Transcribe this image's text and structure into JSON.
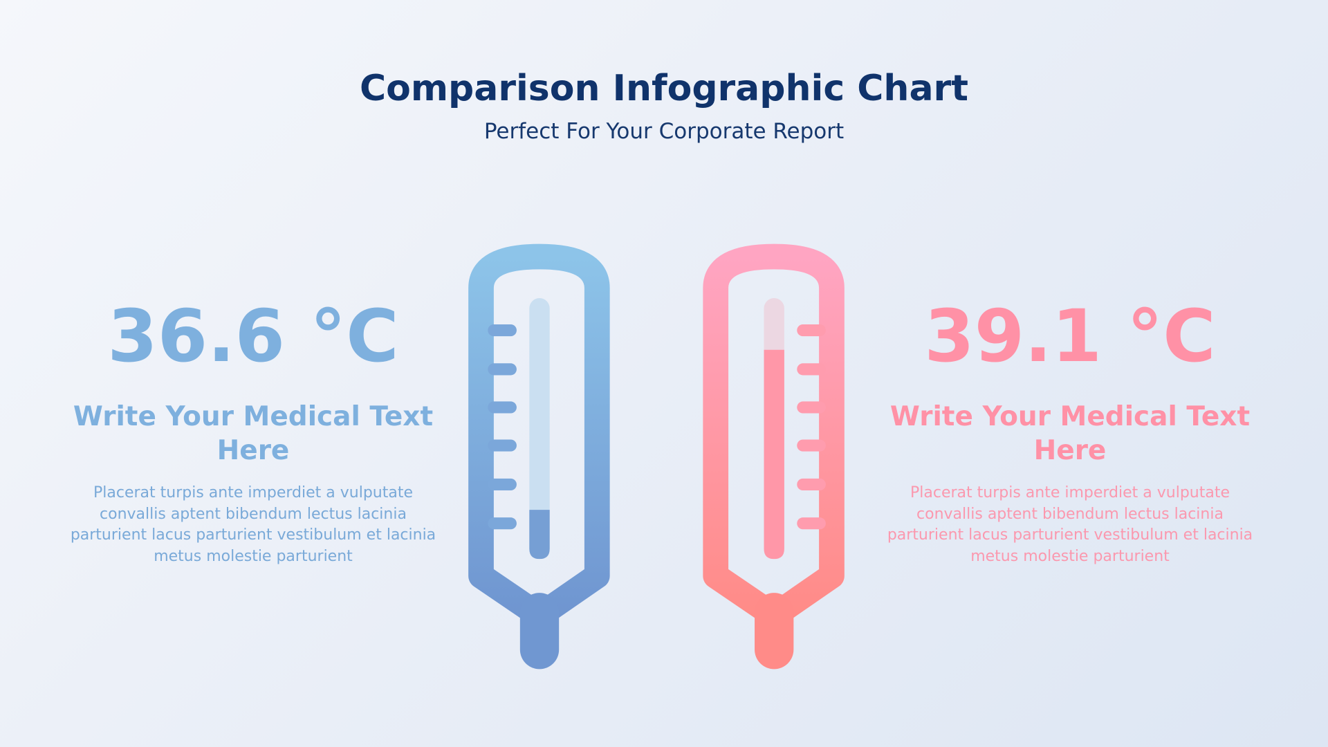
{
  "header": {
    "title": "Comparison Infographic Chart",
    "subtitle": "Perfect For Your Corporate Report"
  },
  "left": {
    "value": "36.6 °C",
    "heading": "Write Your Medical Text Here",
    "body": "Placerat turpis ante imperdiet a vulputate convallis aptent bibendum lectus lacinia parturient lacus parturient vestibulum et lacinia metus molestie parturient"
  },
  "right": {
    "value": "39.1 °C",
    "heading": "Write Your Medical Text Here",
    "body": "Placerat turpis ante imperdiet a vulputate convallis aptent bibendum lectus lacinia parturient lacus parturient vestibulum et lacinia metus molestie parturient"
  }
}
